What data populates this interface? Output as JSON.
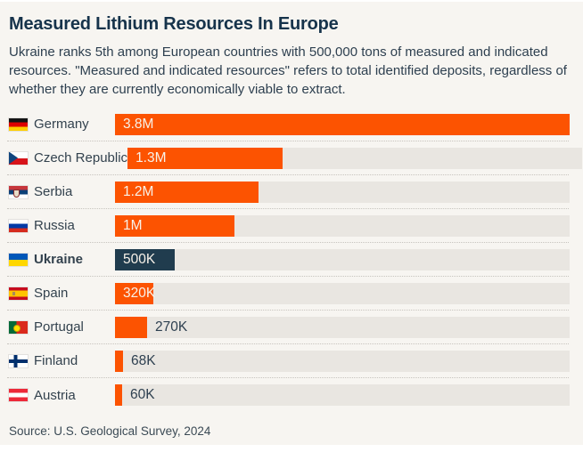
{
  "header": {
    "title": "Measured Lithium Resources In Europe",
    "subtitle": "Ukraine ranks 5th among European countries with 500,000 tons of measured and indicated resources. \"Measured and indicated resources\" refers to total identified deposits, regardless of whether they are currently economically viable to extract."
  },
  "footer": {
    "source": "Source: U.S. Geological Survey, 2024"
  },
  "colors": {
    "accent_orange": "#FC5301",
    "highlight_navy": "#203C4E",
    "track_gray": "#E9E6E1",
    "card_background": "#F7F5F1",
    "title_text": "#16334B",
    "body_text": "#2E4050",
    "value_inside_text": "#F8F2E9"
  },
  "chart_data": {
    "type": "bar",
    "orientation": "horizontal",
    "title": "Measured Lithium Resources In Europe",
    "unit": "tons of measured and indicated lithium resources",
    "value_axis_max": 3800000,
    "grid": false,
    "legend": false,
    "categories": [
      "Germany",
      "Czech Republic",
      "Serbia",
      "Russia",
      "Ukraine",
      "Spain",
      "Portugal",
      "Finland",
      "Austria"
    ],
    "values": [
      3800000,
      1300000,
      1200000,
      1000000,
      500000,
      320000,
      270000,
      68000,
      60000
    ],
    "rows": [
      {
        "country": "Germany",
        "flag_icon": "germany-flag-icon",
        "flag_class": "flag-germany",
        "value": 3800000,
        "value_label": "3.8M",
        "highlight": false,
        "label_inside": true
      },
      {
        "country": "Czech Republic",
        "flag_icon": "czech-republic-flag-icon",
        "flag_class": "flag-czech-republic",
        "value": 1300000,
        "value_label": "1.3M",
        "highlight": false,
        "label_inside": true
      },
      {
        "country": "Serbia",
        "flag_icon": "serbia-flag-icon",
        "flag_class": "flag-serbia",
        "value": 1200000,
        "value_label": "1.2M",
        "highlight": false,
        "label_inside": true
      },
      {
        "country": "Russia",
        "flag_icon": "russia-flag-icon",
        "flag_class": "flag-russia",
        "value": 1000000,
        "value_label": "1M",
        "highlight": false,
        "label_inside": true
      },
      {
        "country": "Ukraine",
        "flag_icon": "ukraine-flag-icon",
        "flag_class": "flag-ukraine",
        "value": 500000,
        "value_label": "500K",
        "highlight": true,
        "label_inside": true
      },
      {
        "country": "Spain",
        "flag_icon": "spain-flag-icon",
        "flag_class": "flag-spain",
        "value": 320000,
        "value_label": "320K",
        "highlight": false,
        "label_inside": true
      },
      {
        "country": "Portugal",
        "flag_icon": "portugal-flag-icon",
        "flag_class": "flag-portugal",
        "value": 270000,
        "value_label": "270K",
        "highlight": false,
        "label_inside": false
      },
      {
        "country": "Finland",
        "flag_icon": "finland-flag-icon",
        "flag_class": "flag-finland",
        "value": 68000,
        "value_label": "68K",
        "highlight": false,
        "label_inside": false
      },
      {
        "country": "Austria",
        "flag_icon": "austria-flag-icon",
        "flag_class": "flag-austria",
        "value": 60000,
        "value_label": "60K",
        "highlight": false,
        "label_inside": false
      }
    ]
  }
}
